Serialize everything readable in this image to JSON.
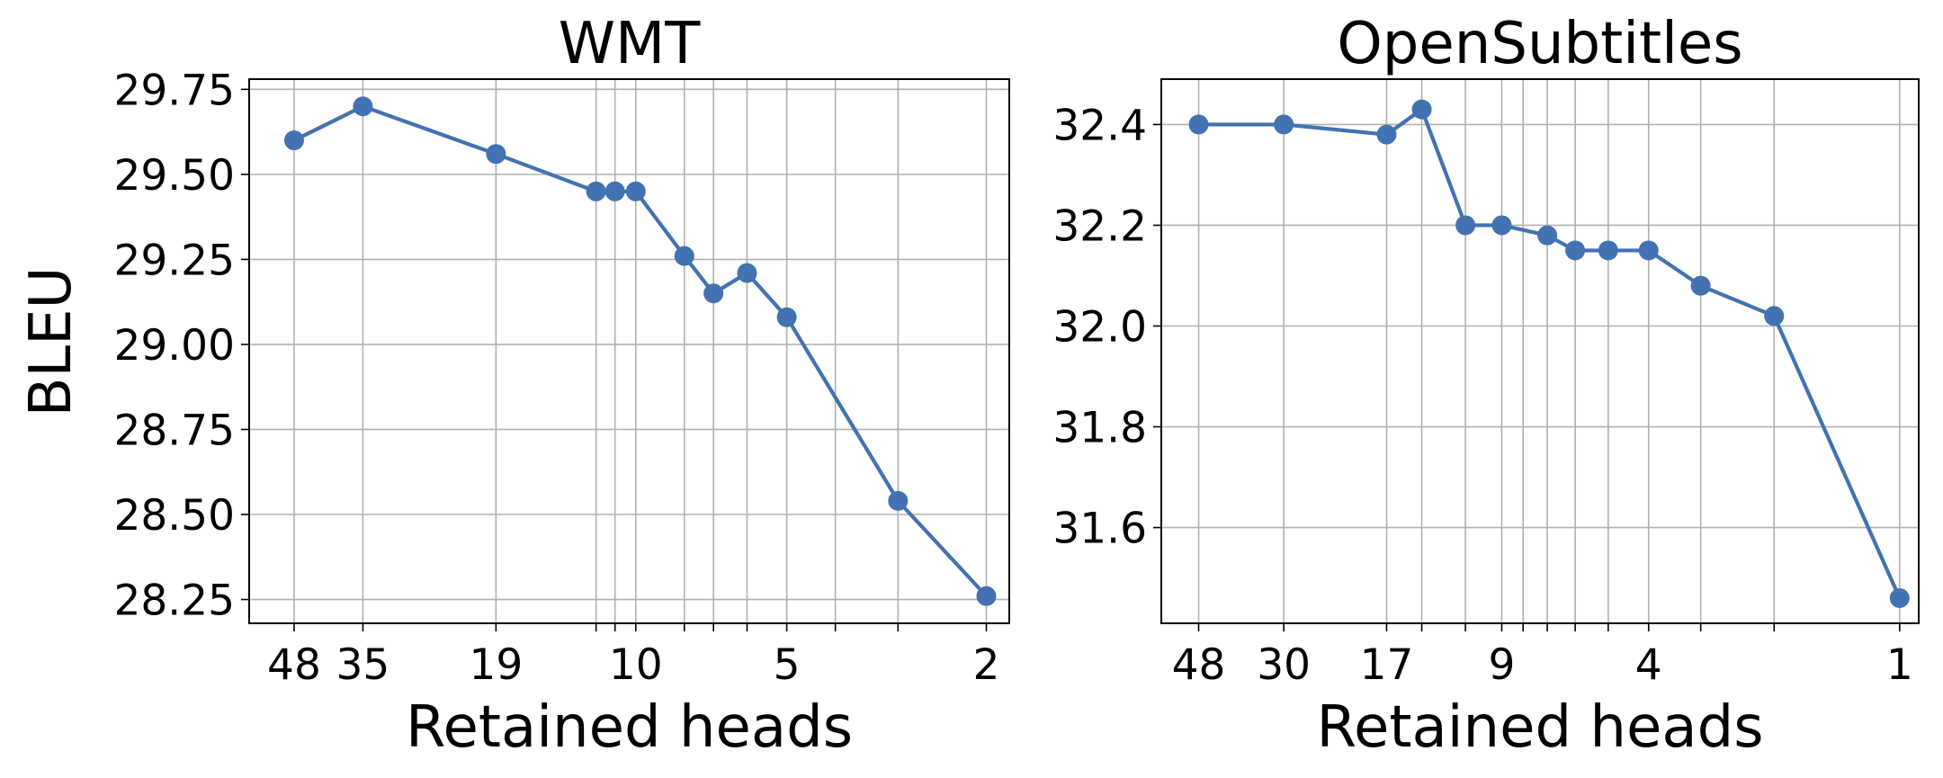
{
  "figure": {
    "ylabel": "BLEU",
    "xlabel": "Retained heads"
  },
  "colors": {
    "series": "#4272b1",
    "grid": "#b0b0b0",
    "axis": "#000000"
  },
  "chart_data": [
    {
      "type": "line",
      "title": "WMT",
      "xlabel": "Retained heads",
      "ylabel": "BLEU",
      "x_scale": "log (reversed)",
      "xlim": [
        59,
        1.8
      ],
      "ylim": [
        28.18,
        29.78
      ],
      "grid": true,
      "x_tick_values": [
        48,
        35,
        19,
        12,
        11,
        10,
        8,
        7,
        6,
        5,
        4,
        3,
        2
      ],
      "x_tick_labels": [
        {
          "x": 48,
          "label": "48"
        },
        {
          "x": 35,
          "label": "35"
        },
        {
          "x": 19,
          "label": "19"
        },
        {
          "x": 10,
          "label": "10"
        },
        {
          "x": 5,
          "label": "5"
        },
        {
          "x": 2,
          "label": "2"
        }
      ],
      "y_ticks": [
        {
          "value": 28.25,
          "label": "28.25"
        },
        {
          "value": 28.5,
          "label": "28.50"
        },
        {
          "value": 28.75,
          "label": "28.75"
        },
        {
          "value": 29.0,
          "label": "29.00"
        },
        {
          "value": 29.25,
          "label": "29.25"
        },
        {
          "value": 29.5,
          "label": "29.50"
        },
        {
          "value": 29.75,
          "label": "29.75"
        }
      ],
      "series": [
        {
          "x": [
            48,
            35,
            19,
            12,
            11,
            10,
            8,
            7,
            6,
            5,
            3,
            2
          ],
          "y": [
            29.6,
            29.7,
            29.56,
            29.45,
            29.45,
            29.45,
            29.26,
            29.15,
            29.21,
            29.08,
            28.54,
            28.26
          ]
        }
      ]
    },
    {
      "type": "line",
      "title": "OpenSubtitles",
      "xlabel": "Retained heads",
      "ylabel": "",
      "x_scale": "log (reversed)",
      "xlim": [
        59,
        0.9
      ],
      "ylim": [
        31.41,
        32.49
      ],
      "grid": true,
      "x_tick_values": [
        48,
        30,
        17,
        14,
        11,
        9,
        8,
        7,
        6,
        5,
        4,
        3,
        2,
        1
      ],
      "x_tick_labels": [
        {
          "x": 48,
          "label": "48"
        },
        {
          "x": 30,
          "label": "30"
        },
        {
          "x": 17,
          "label": "17"
        },
        {
          "x": 9,
          "label": "9"
        },
        {
          "x": 4,
          "label": "4"
        },
        {
          "x": 1,
          "label": "1"
        }
      ],
      "y_ticks": [
        {
          "value": 31.6,
          "label": "31.6"
        },
        {
          "value": 31.8,
          "label": "31.8"
        },
        {
          "value": 32.0,
          "label": "32.0"
        },
        {
          "value": 32.2,
          "label": "32.2"
        },
        {
          "value": 32.4,
          "label": "32.4"
        }
      ],
      "series": [
        {
          "x": [
            48,
            30,
            17,
            14,
            11,
            9,
            7,
            6,
            5,
            4,
            3,
            2,
            1
          ],
          "y": [
            32.4,
            32.4,
            32.38,
            32.43,
            32.2,
            32.2,
            32.18,
            32.15,
            32.15,
            32.15,
            32.08,
            32.02,
            31.46
          ]
        }
      ]
    }
  ]
}
